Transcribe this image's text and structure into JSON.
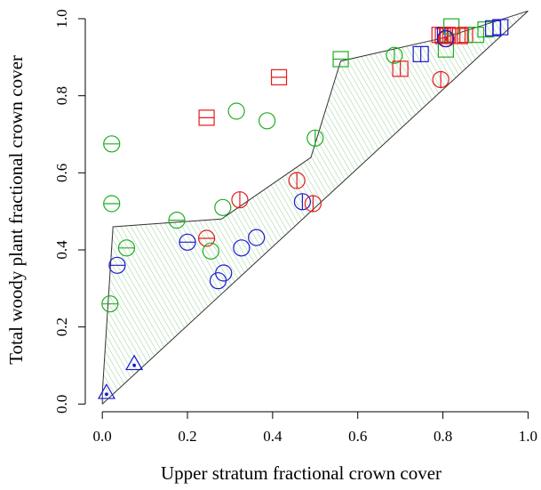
{
  "chart_data": {
    "type": "scatter",
    "title": "",
    "xlabel": "Upper stratum fractional crown cover",
    "ylabel": "Total woody plant fractional crown cover",
    "xlim": [
      -0.04,
      1.02
    ],
    "ylim": [
      -0.02,
      1.03
    ],
    "x_ticks": [
      0.0,
      0.2,
      0.4,
      0.6,
      0.8,
      1.0
    ],
    "y_ticks": [
      0.0,
      0.2,
      0.4,
      0.6,
      0.8,
      1.0
    ],
    "x_tick_labels": [
      "0.0",
      "0.2",
      "0.4",
      "0.6",
      "0.8",
      "1.0"
    ],
    "y_tick_labels": [
      "0.0",
      "0.2",
      "0.4",
      "0.6",
      "0.8",
      "1.0"
    ],
    "grid": false,
    "colors": {
      "red": "#e41a1c",
      "green": "#1fae1f",
      "blue": "#1a1acc",
      "line": "#333333",
      "hatch": "#9bd09b"
    },
    "envelope_hull": [
      [
        0.0,
        0.0
      ],
      [
        0.0,
        0.03
      ],
      [
        0.025,
        0.46
      ],
      [
        0.28,
        0.48
      ],
      [
        0.49,
        0.64
      ],
      [
        0.56,
        0.89
      ],
      [
        0.8,
        0.95
      ],
      [
        1.0,
        1.02
      ]
    ],
    "reference_line": [
      [
        0.0,
        0.0
      ],
      [
        1.0,
        1.02
      ]
    ],
    "points": [
      {
        "x": 0.01,
        "y": 0.03,
        "symbol": "triangle-dot",
        "color": "blue"
      },
      {
        "x": 0.075,
        "y": 0.105,
        "symbol": "triangle-dot",
        "color": "blue"
      },
      {
        "x": 0.018,
        "y": 0.26,
        "symbol": "circle-h",
        "color": "green"
      },
      {
        "x": 0.022,
        "y": 0.52,
        "symbol": "circle-h",
        "color": "green"
      },
      {
        "x": 0.022,
        "y": 0.675,
        "symbol": "circle-h",
        "color": "green"
      },
      {
        "x": 0.035,
        "y": 0.36,
        "symbol": "circle-h",
        "color": "blue"
      },
      {
        "x": 0.057,
        "y": 0.405,
        "symbol": "circle-h",
        "color": "green"
      },
      {
        "x": 0.175,
        "y": 0.477,
        "symbol": "circle-h",
        "color": "green"
      },
      {
        "x": 0.2,
        "y": 0.42,
        "symbol": "circle-h",
        "color": "blue"
      },
      {
        "x": 0.245,
        "y": 0.43,
        "symbol": "circle-h",
        "color": "red"
      },
      {
        "x": 0.255,
        "y": 0.397,
        "symbol": "circle",
        "color": "green"
      },
      {
        "x": 0.272,
        "y": 0.32,
        "symbol": "circle",
        "color": "blue"
      },
      {
        "x": 0.283,
        "y": 0.51,
        "symbol": "circle",
        "color": "green"
      },
      {
        "x": 0.285,
        "y": 0.34,
        "symbol": "circle",
        "color": "blue"
      },
      {
        "x": 0.315,
        "y": 0.76,
        "symbol": "circle",
        "color": "green"
      },
      {
        "x": 0.323,
        "y": 0.53,
        "symbol": "circle-v",
        "color": "red"
      },
      {
        "x": 0.327,
        "y": 0.405,
        "symbol": "circle",
        "color": "blue"
      },
      {
        "x": 0.362,
        "y": 0.432,
        "symbol": "circle",
        "color": "blue"
      },
      {
        "x": 0.387,
        "y": 0.735,
        "symbol": "circle",
        "color": "green"
      },
      {
        "x": 0.457,
        "y": 0.58,
        "symbol": "circle-v",
        "color": "red"
      },
      {
        "x": 0.47,
        "y": 0.525,
        "symbol": "circle-v",
        "color": "blue"
      },
      {
        "x": 0.495,
        "y": 0.52,
        "symbol": "circle-v",
        "color": "red"
      },
      {
        "x": 0.5,
        "y": 0.69,
        "symbol": "circle-v",
        "color": "green"
      },
      {
        "x": 0.686,
        "y": 0.905,
        "symbol": "circle-v",
        "color": "green"
      },
      {
        "x": 0.795,
        "y": 0.842,
        "symbol": "circle-v",
        "color": "red"
      },
      {
        "x": 0.245,
        "y": 0.743,
        "symbol": "square-h",
        "color": "red"
      },
      {
        "x": 0.415,
        "y": 0.848,
        "symbol": "square-h",
        "color": "red"
      },
      {
        "x": 0.56,
        "y": 0.895,
        "symbol": "square-h",
        "color": "green"
      },
      {
        "x": 0.7,
        "y": 0.87,
        "symbol": "square-v",
        "color": "red"
      },
      {
        "x": 0.748,
        "y": 0.908,
        "symbol": "square-v",
        "color": "blue"
      },
      {
        "x": 0.792,
        "y": 0.958,
        "symbol": "square-v",
        "color": "red"
      },
      {
        "x": 0.8,
        "y": 0.955,
        "symbol": "square-v",
        "color": "red"
      },
      {
        "x": 0.805,
        "y": 0.958,
        "symbol": "square-v",
        "color": "blue"
      },
      {
        "x": 0.807,
        "y": 0.92,
        "symbol": "square",
        "color": "green"
      },
      {
        "x": 0.812,
        "y": 0.958,
        "symbol": "square-v",
        "color": "red"
      },
      {
        "x": 0.82,
        "y": 0.98,
        "symbol": "square",
        "color": "green"
      },
      {
        "x": 0.84,
        "y": 0.955,
        "symbol": "square-v",
        "color": "red"
      },
      {
        "x": 0.852,
        "y": 0.958,
        "symbol": "square-v",
        "color": "red"
      },
      {
        "x": 0.878,
        "y": 0.958,
        "symbol": "square",
        "color": "green"
      },
      {
        "x": 0.9,
        "y": 0.972,
        "symbol": "square",
        "color": "green"
      },
      {
        "x": 0.918,
        "y": 0.975,
        "symbol": "square-v",
        "color": "blue"
      },
      {
        "x": 0.935,
        "y": 0.978,
        "symbol": "square-v",
        "color": "blue"
      },
      {
        "x": 0.808,
        "y": 0.948,
        "symbol": "circle-dot",
        "color": "red"
      },
      {
        "x": 0.806,
        "y": 0.948,
        "symbol": "circle",
        "color": "blue"
      }
    ]
  }
}
